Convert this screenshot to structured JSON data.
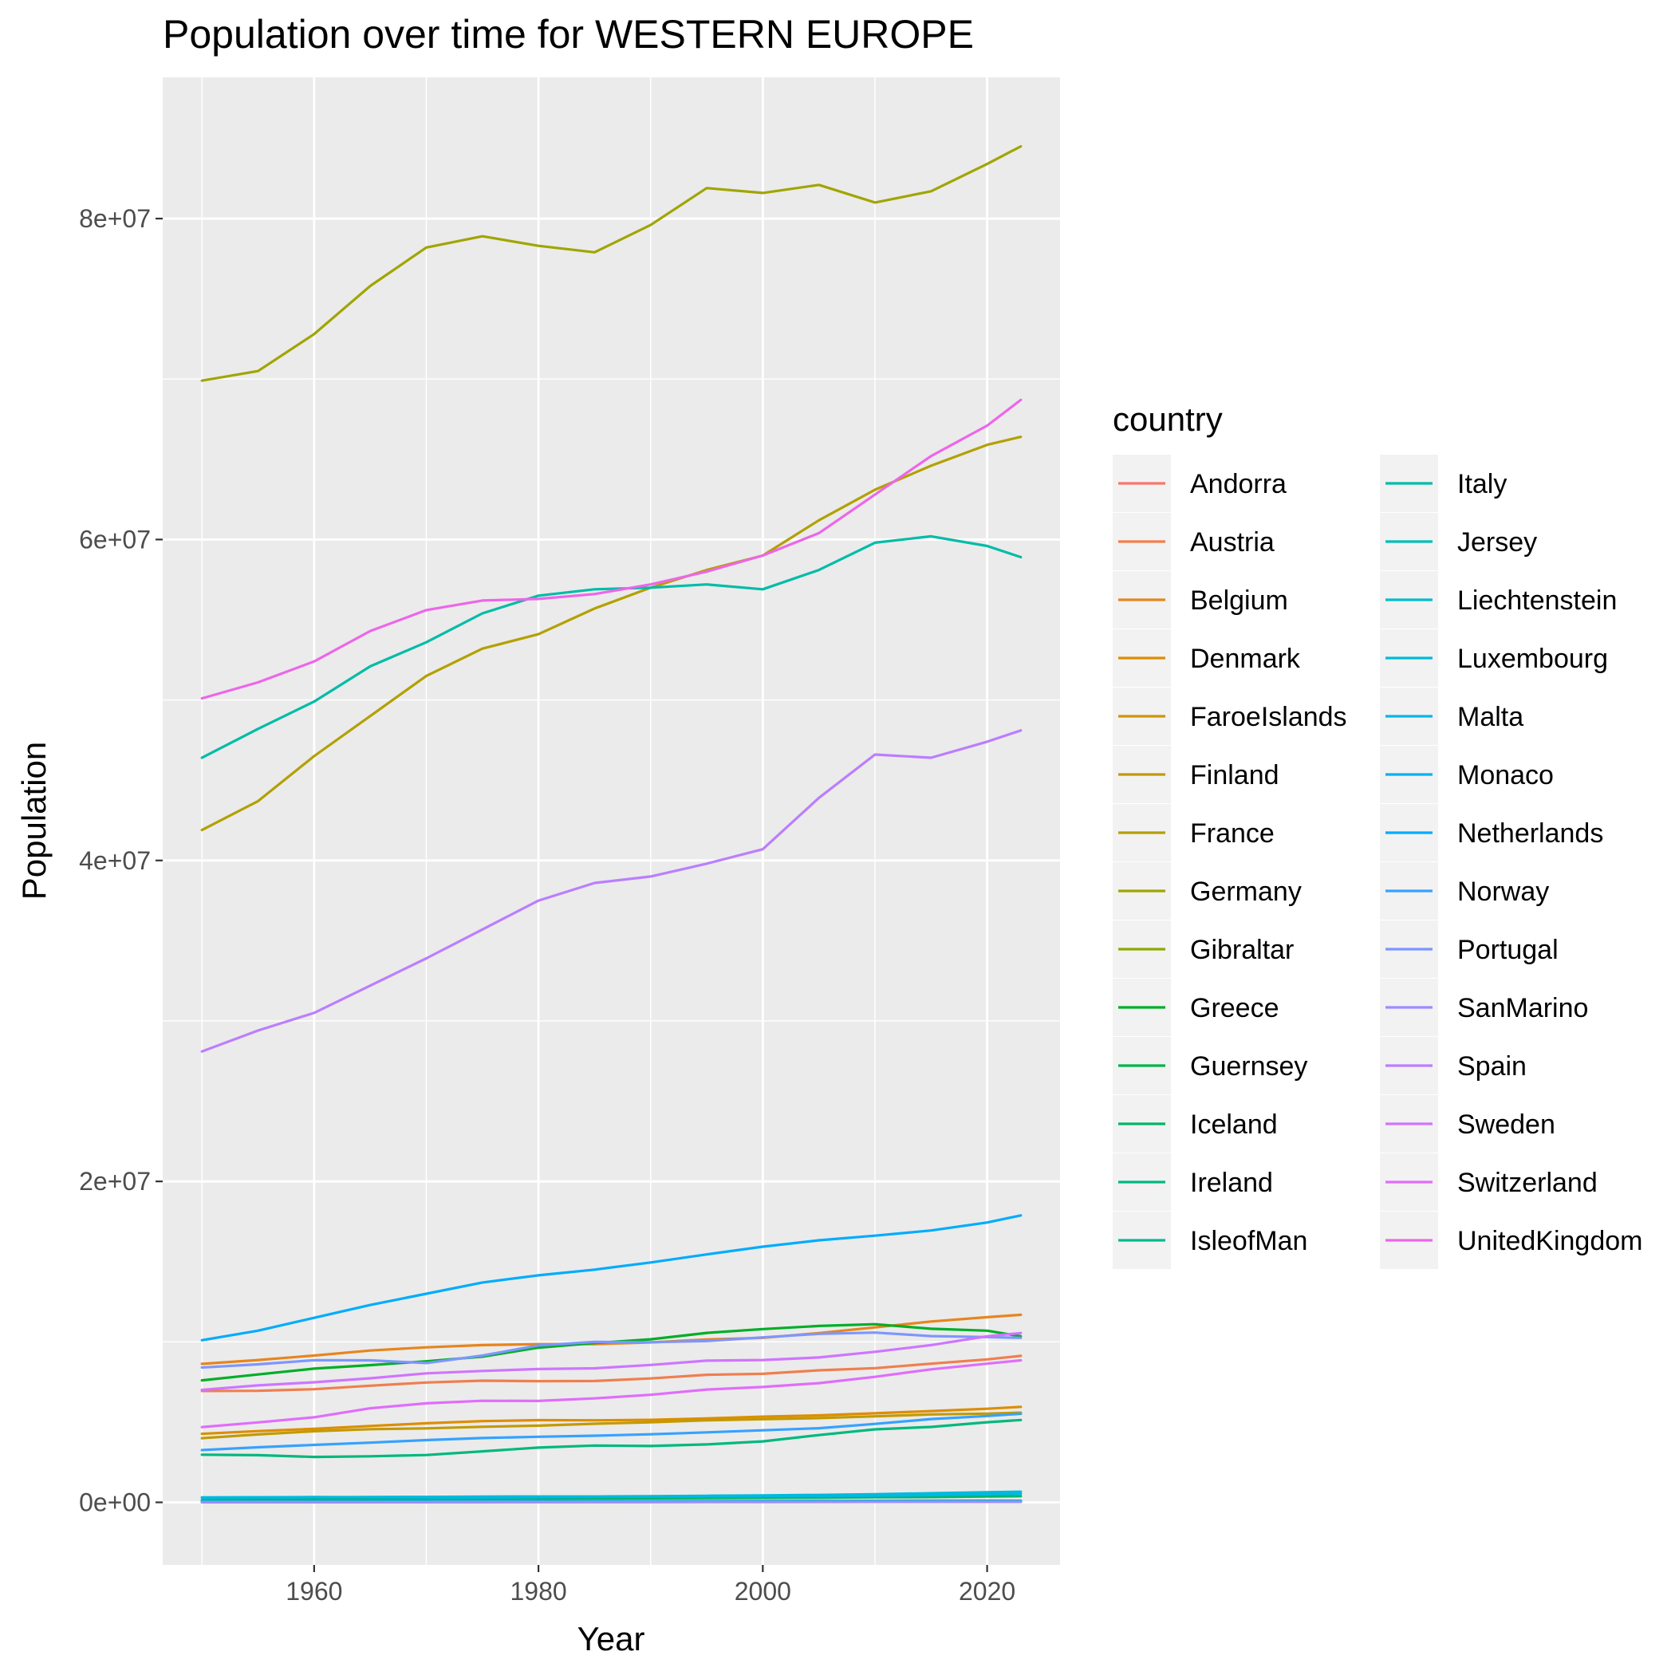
{
  "chart_data": {
    "type": "line",
    "title": "Population over time for WESTERN EUROPE",
    "xlabel": "Year",
    "ylabel": "Population",
    "xlim": [
      1946.5,
      2026.5
    ],
    "ylim": [
      -3900000,
      88800000
    ],
    "x_ticks": [
      1960,
      1980,
      2000,
      2020
    ],
    "y_ticks": [
      0,
      20000000,
      40000000,
      60000000,
      80000000
    ],
    "y_tick_labels": [
      "0e+00",
      "2e+07",
      "4e+07",
      "6e+07",
      "8e+07"
    ],
    "grid": true,
    "legend_title": "country",
    "legend_position": "right",
    "x": [
      1950,
      1955,
      1960,
      1965,
      1970,
      1975,
      1980,
      1985,
      1990,
      1995,
      2000,
      2005,
      2010,
      2015,
      2020,
      2023
    ],
    "series": [
      {
        "name": "Andorra",
        "color": "#F8766D",
        "values": [
          6000,
          6500,
          8500,
          15000,
          19500,
          27000,
          35500,
          45000,
          53500,
          64000,
          65500,
          76500,
          84000,
          77500,
          77500,
          80000
        ]
      },
      {
        "name": "Austria",
        "color": "#F07E4E",
        "values": [
          6940000,
          6950000,
          7050000,
          7270000,
          7470000,
          7580000,
          7550000,
          7560000,
          7720000,
          7950000,
          8010000,
          8230000,
          8360000,
          8640000,
          8910000,
          9130000
        ]
      },
      {
        "name": "Belgium",
        "color": "#E7851E",
        "values": [
          8630000,
          8870000,
          9150000,
          9460000,
          9660000,
          9800000,
          9860000,
          9860000,
          9970000,
          10150000,
          10250000,
          10550000,
          10900000,
          11270000,
          11540000,
          11690000
        ]
      },
      {
        "name": "Denmark",
        "color": "#DD8D00",
        "values": [
          4270000,
          4440000,
          4580000,
          4760000,
          4930000,
          5060000,
          5120000,
          5110000,
          5140000,
          5230000,
          5340000,
          5420000,
          5550000,
          5690000,
          5830000,
          5950000
        ]
      },
      {
        "name": "FaroeIslands",
        "color": "#D09400",
        "values": [
          31000,
          33000,
          35000,
          37000,
          39000,
          41000,
          43000,
          45000,
          47000,
          44000,
          46000,
          48000,
          48500,
          49500,
          52000,
          54000
        ]
      },
      {
        "name": "Finland",
        "color": "#C29A00",
        "values": [
          4000000,
          4230000,
          4430000,
          4560000,
          4610000,
          4710000,
          4780000,
          4900000,
          4990000,
          5110000,
          5180000,
          5250000,
          5360000,
          5480000,
          5530000,
          5590000
        ]
      },
      {
        "name": "France",
        "color": "#B3A000",
        "values": [
          41900000,
          43700000,
          46500000,
          49000000,
          51500000,
          53200000,
          54100000,
          55700000,
          57000000,
          58100000,
          59000000,
          61200000,
          63100000,
          64600000,
          65900000,
          66400000
        ]
      },
      {
        "name": "Germany",
        "color": "#A1A500",
        "values": [
          69900000,
          70500000,
          72800000,
          75800000,
          78200000,
          78900000,
          78300000,
          77900000,
          79600000,
          81900000,
          81600000,
          82100000,
          81000000,
          81700000,
          83400000,
          84500000
        ]
      },
      {
        "name": "Gibraltar",
        "color": "#8BAA00",
        "values": [
          22000,
          23000,
          24000,
          25000,
          26000,
          28000,
          29000,
          28000,
          27000,
          27000,
          28000,
          29000,
          31000,
          33000,
          32500,
          32700
        ]
      },
      {
        "name": "Greece",
        "color": "#00AE26",
        "values": [
          7600000,
          7970000,
          8330000,
          8550000,
          8790000,
          9080000,
          9640000,
          9930000,
          10160000,
          10560000,
          10800000,
          10990000,
          11100000,
          10820000,
          10700000,
          10350000
        ]
      },
      {
        "name": "Guernsey",
        "color": "#00B24A",
        "values": [
          45000,
          46000,
          47000,
          49000,
          51000,
          52000,
          53000,
          54000,
          58000,
          58500,
          60000,
          61000,
          62000,
          62500,
          63500,
          64000
        ]
      },
      {
        "name": "Iceland",
        "color": "#00B566",
        "values": [
          143000,
          158000,
          176000,
          192000,
          204000,
          218000,
          228000,
          241000,
          255000,
          267000,
          281000,
          296000,
          318000,
          330000,
          366000,
          384000
        ]
      },
      {
        "name": "Ireland",
        "color": "#00B87E",
        "values": [
          2970000,
          2940000,
          2830000,
          2870000,
          2950000,
          3180000,
          3410000,
          3540000,
          3510000,
          3610000,
          3800000,
          4190000,
          4550000,
          4700000,
          4990000,
          5130000
        ]
      },
      {
        "name": "IsleofMan",
        "color": "#00BA93",
        "values": [
          55000,
          54000,
          48000,
          50000,
          56000,
          61000,
          64000,
          64000,
          69000,
          72000,
          76000,
          80000,
          83000,
          84000,
          85000,
          84500
        ]
      },
      {
        "name": "Italy",
        "color": "#00BCA7",
        "values": [
          46400000,
          48200000,
          49900000,
          52100000,
          53600000,
          55400000,
          56500000,
          56900000,
          57000000,
          57200000,
          56900000,
          58100000,
          59800000,
          60200000,
          59600000,
          58900000
        ]
      },
      {
        "name": "Jersey",
        "color": "#00BDB9",
        "values": [
          57000,
          58000,
          62000,
          67000,
          72000,
          76000,
          77000,
          79000,
          84000,
          87000,
          88000,
          91000,
          98000,
          102000,
          104000,
          103000
        ]
      },
      {
        "name": "Liechtenstein",
        "color": "#00BDCA",
        "values": [
          14000,
          15500,
          16600,
          19200,
          21300,
          24000,
          25600,
          27300,
          29000,
          31000,
          33000,
          35000,
          36000,
          37500,
          39000,
          39500
        ]
      },
      {
        "name": "Luxembourg",
        "color": "#00BBDA",
        "values": [
          296000,
          305000,
          314000,
          332000,
          339000,
          362000,
          364000,
          366000,
          382000,
          410000,
          436000,
          466000,
          506000,
          567000,
          630000,
          661000
        ]
      },
      {
        "name": "Malta",
        "color": "#00B8E7",
        "values": [
          312000,
          315000,
          330000,
          317000,
          303000,
          305000,
          324000,
          344000,
          361000,
          376000,
          390000,
          403000,
          414000,
          453000,
          515000,
          535000
        ]
      },
      {
        "name": "Monaco",
        "color": "#00B3F3",
        "values": [
          22000,
          21000,
          22000,
          24000,
          24500,
          25000,
          27000,
          28000,
          30000,
          31000,
          32000,
          33000,
          33500,
          37000,
          37000,
          38000
        ]
      },
      {
        "name": "Netherlands",
        "color": "#00ACFC",
        "values": [
          10100000,
          10700000,
          11500000,
          12300000,
          13000000,
          13700000,
          14150000,
          14500000,
          14950000,
          15450000,
          15930000,
          16330000,
          16620000,
          16940000,
          17440000,
          17880000
        ]
      },
      {
        "name": "Norway",
        "color": "#35A2FF",
        "values": [
          3260000,
          3430000,
          3580000,
          3720000,
          3880000,
          4010000,
          4090000,
          4150000,
          4240000,
          4360000,
          4490000,
          4620000,
          4890000,
          5190000,
          5380000,
          5520000
        ]
      },
      {
        "name": "Portugal",
        "color": "#7D96FF",
        "values": [
          8400000,
          8600000,
          8860000,
          8850000,
          8680000,
          9150000,
          9780000,
          10000000,
          9980000,
          10050000,
          10280000,
          10500000,
          10580000,
          10360000,
          10300000,
          10250000
        ]
      },
      {
        "name": "SanMarino",
        "color": "#A08AFF",
        "values": [
          13000,
          14500,
          15500,
          17000,
          19000,
          20500,
          21500,
          22500,
          23500,
          25500,
          27000,
          29500,
          31500,
          33000,
          34000,
          33800
        ]
      },
      {
        "name": "Spain",
        "color": "#BB7EFF",
        "values": [
          28100000,
          29400000,
          30500000,
          32200000,
          33900000,
          35700000,
          37500000,
          38600000,
          39000000,
          39800000,
          40700000,
          43900000,
          46600000,
          46400000,
          47400000,
          48100000
        ]
      },
      {
        "name": "Sweden",
        "color": "#CF75FF",
        "values": [
          7010000,
          7290000,
          7480000,
          7730000,
          8040000,
          8190000,
          8310000,
          8350000,
          8560000,
          8830000,
          8870000,
          9030000,
          9380000,
          9800000,
          10350000,
          10550000
        ]
      },
      {
        "name": "Switzerland",
        "color": "#E06DFB",
        "values": [
          4690000,
          4980000,
          5300000,
          5860000,
          6170000,
          6330000,
          6320000,
          6480000,
          6700000,
          7030000,
          7190000,
          7430000,
          7820000,
          8290000,
          8640000,
          8850000
        ]
      },
      {
        "name": "UnitedKingdom",
        "color": "#ED66E9",
        "values": [
          50100000,
          51100000,
          52400000,
          54300000,
          55600000,
          56200000,
          56300000,
          56600000,
          57200000,
          58000000,
          59000000,
          60400000,
          62800000,
          65200000,
          67100000,
          68700000
        ]
      }
    ]
  }
}
